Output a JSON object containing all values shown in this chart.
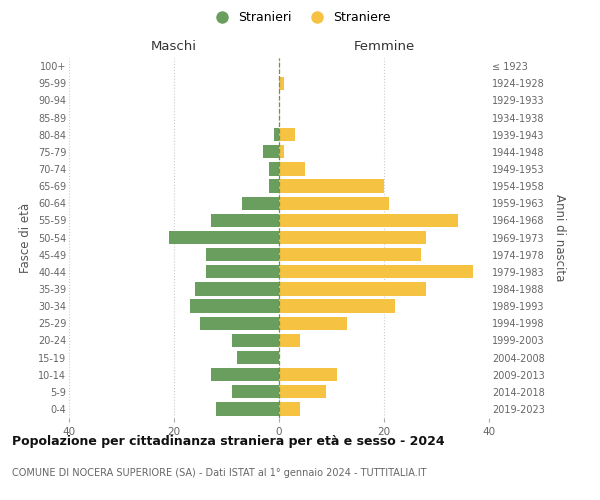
{
  "age_groups": [
    "0-4",
    "5-9",
    "10-14",
    "15-19",
    "20-24",
    "25-29",
    "30-34",
    "35-39",
    "40-44",
    "45-49",
    "50-54",
    "55-59",
    "60-64",
    "65-69",
    "70-74",
    "75-79",
    "80-84",
    "85-89",
    "90-94",
    "95-99",
    "100+"
  ],
  "birth_years": [
    "2019-2023",
    "2014-2018",
    "2009-2013",
    "2004-2008",
    "1999-2003",
    "1994-1998",
    "1989-1993",
    "1984-1988",
    "1979-1983",
    "1974-1978",
    "1969-1973",
    "1964-1968",
    "1959-1963",
    "1954-1958",
    "1949-1953",
    "1944-1948",
    "1939-1943",
    "1934-1938",
    "1929-1933",
    "1924-1928",
    "≤ 1923"
  ],
  "maschi": [
    12,
    9,
    13,
    8,
    9,
    15,
    17,
    16,
    14,
    14,
    21,
    13,
    7,
    2,
    2,
    3,
    1,
    0,
    0,
    0,
    0
  ],
  "femmine": [
    4,
    9,
    11,
    0,
    4,
    13,
    22,
    28,
    37,
    27,
    28,
    34,
    21,
    20,
    5,
    1,
    3,
    0,
    0,
    1,
    0
  ],
  "color_maschi": "#6a9e5e",
  "color_femmine": "#f5c242",
  "color_dashed": "#888844",
  "xlim": 40,
  "title": "Popolazione per cittadinanza straniera per età e sesso - 2024",
  "subtitle": "COMUNE DI NOCERA SUPERIORE (SA) - Dati ISTAT al 1° gennaio 2024 - TUTTITALIA.IT",
  "ylabel_left": "Fasce di età",
  "ylabel_right": "Anni di nascita",
  "label_maschi": "Stranieri",
  "label_femmine": "Straniere",
  "header_left": "Maschi",
  "header_right": "Femmine",
  "bg_color": "#ffffff",
  "grid_color": "#cccccc"
}
